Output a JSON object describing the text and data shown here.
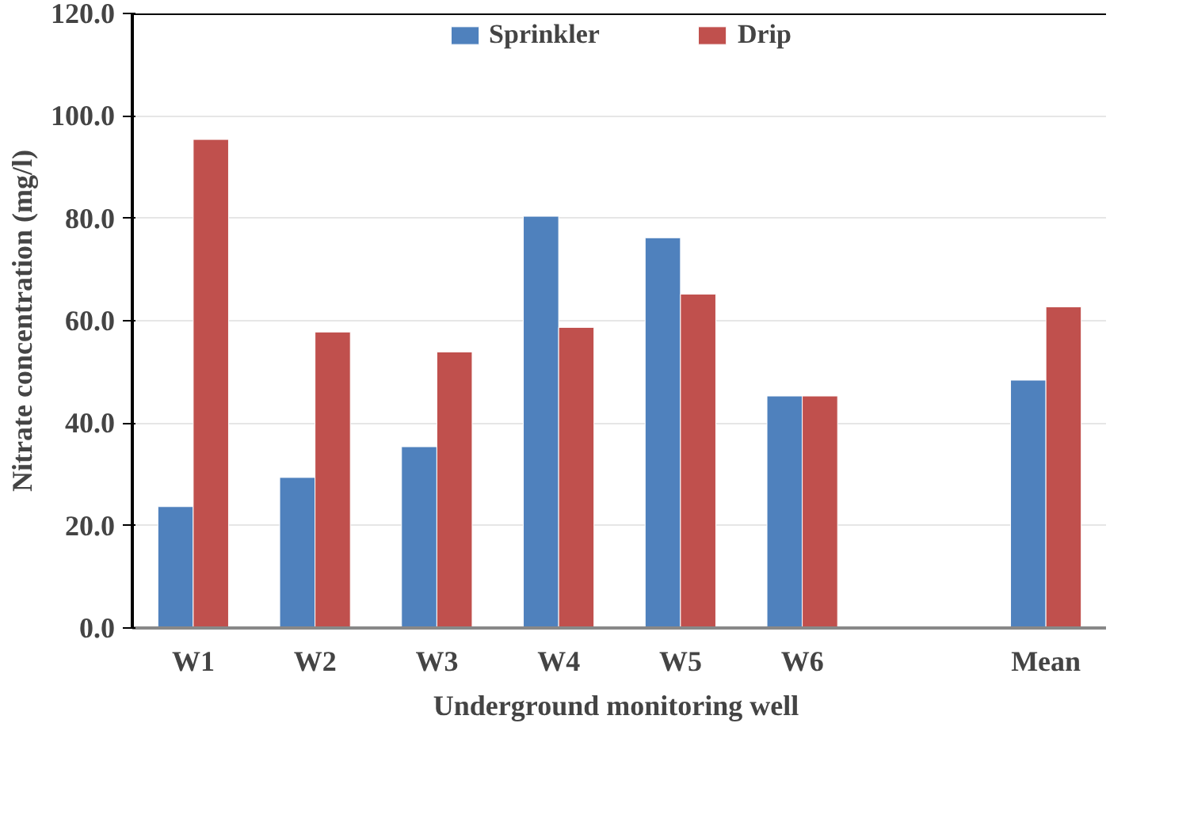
{
  "chart_data": {
    "type": "bar",
    "xlabel": "Underground  monitoring well",
    "ylabel": "Nitrate concentration (mg/l)",
    "categories": [
      "W1",
      "W2",
      "W3",
      "W4",
      "W5",
      "W6",
      null,
      "Mean"
    ],
    "series": [
      {
        "name": "Sprinkler",
        "color": "#4f81bd",
        "values": [
          23.7,
          29.4,
          35.4,
          80.4,
          76.2,
          45.3,
          null,
          48.4
        ]
      },
      {
        "name": "Drip",
        "color": "#c0504d",
        "values": [
          95.4,
          57.8,
          53.9,
          58.7,
          65.2,
          45.3,
          null,
          62.7
        ]
      }
    ],
    "ylim": [
      0,
      120
    ],
    "yticks": [
      {
        "value": 0,
        "label": "0.0"
      },
      {
        "value": 20,
        "label": "20.0"
      },
      {
        "value": 40,
        "label": "40.0"
      },
      {
        "value": 60,
        "label": "60.0"
      },
      {
        "value": 80,
        "label": "80.0"
      },
      {
        "value": 100,
        "label": "100.0"
      },
      {
        "value": 120,
        "label": "120.0"
      }
    ],
    "grid": "y",
    "legend": "top"
  }
}
